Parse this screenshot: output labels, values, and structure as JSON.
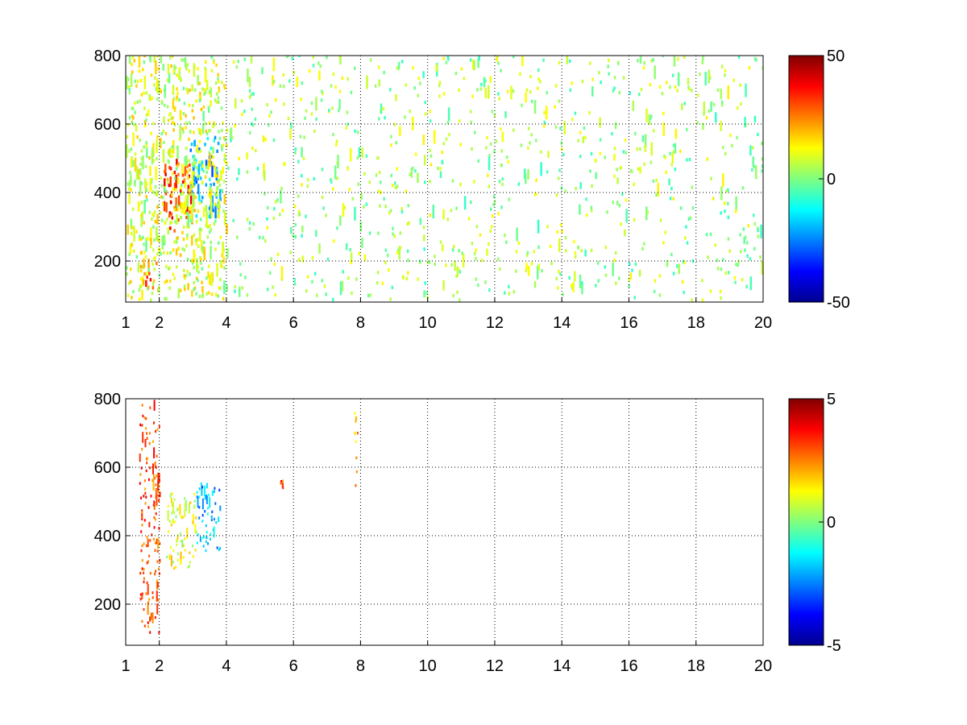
{
  "chart_data": [
    {
      "type": "heatmap",
      "title": "",
      "xlabel": "",
      "ylabel": "",
      "xlim": [
        1,
        20
      ],
      "ylim": [
        80,
        800
      ],
      "x_ticks": [
        "1",
        "2",
        "4",
        "6",
        "8",
        "10",
        "12",
        "14",
        "16",
        "18",
        "20"
      ],
      "x_tick_values": [
        1,
        2,
        4,
        6,
        8,
        10,
        12,
        14,
        16,
        18,
        20
      ],
      "y_ticks": [
        "200",
        "400",
        "600",
        "800"
      ],
      "y_tick_values": [
        200,
        400,
        600,
        800
      ],
      "grid": true,
      "grid_style": "dotted",
      "colormap": "jet",
      "colorbar": {
        "placement": "right",
        "range": [
          -50,
          50
        ],
        "ticks": [
          "50",
          "0",
          "-50"
        ],
        "tick_values": [
          50,
          0,
          -50
        ]
      },
      "features": [
        {
          "x": [
            1.4,
            1.9
          ],
          "y": [
            110,
            190
          ],
          "value": 25
        },
        {
          "x": [
            2.1,
            3.0
          ],
          "y": [
            280,
            480
          ],
          "value": 30
        },
        {
          "x": [
            2.9,
            3.8
          ],
          "y": [
            320,
            560
          ],
          "value": -20
        },
        {
          "x": [
            1.0,
            4.0
          ],
          "y": [
            80,
            800
          ],
          "value": 8
        },
        {
          "x": [
            4.0,
            20.0
          ],
          "y": [
            80,
            800
          ],
          "value": 3
        }
      ]
    },
    {
      "type": "heatmap",
      "title": "",
      "xlabel": "",
      "ylabel": "",
      "xlim": [
        1,
        20
      ],
      "ylim": [
        80,
        800
      ],
      "x_ticks": [
        "1",
        "2",
        "4",
        "6",
        "8",
        "10",
        "12",
        "14",
        "16",
        "18",
        "20"
      ],
      "x_tick_values": [
        1,
        2,
        4,
        6,
        8,
        10,
        12,
        14,
        16,
        18,
        20
      ],
      "y_ticks": [
        "200",
        "400",
        "600",
        "800"
      ],
      "y_tick_values": [
        200,
        400,
        600,
        800
      ],
      "grid": true,
      "grid_style": "dotted",
      "colormap": "jet",
      "colorbar": {
        "placement": "right",
        "range": [
          -5,
          5
        ],
        "ticks": [
          "5",
          "0",
          "-5"
        ],
        "tick_values": [
          5,
          0,
          -5
        ]
      },
      "features": [
        {
          "x": [
            2.2,
            3.1
          ],
          "y": [
            300,
            520
          ],
          "value": 1
        },
        {
          "x": [
            3.1,
            3.8
          ],
          "y": [
            350,
            560
          ],
          "value": -2
        },
        {
          "x": [
            1.4,
            2.0
          ],
          "y": [
            110,
            780
          ],
          "value": 3
        },
        {
          "x": [
            7.8,
            7.9
          ],
          "y": [
            470,
            780
          ],
          "value": 2
        },
        {
          "x": [
            5.6,
            5.7
          ],
          "y": [
            520,
            580
          ],
          "value": 3
        }
      ]
    }
  ]
}
